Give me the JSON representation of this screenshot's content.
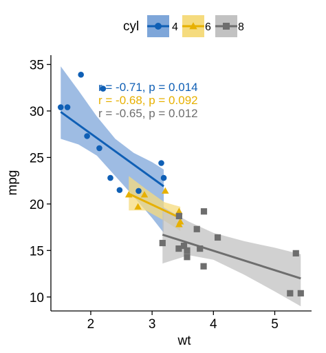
{
  "chart_data": {
    "type": "scatter",
    "xlabel": "wt",
    "ylabel": "mpg",
    "xlim": [
      1.35,
      5.6
    ],
    "ylim": [
      8.5,
      36
    ],
    "x_ticks": [
      2,
      3,
      4,
      5
    ],
    "y_ticks": [
      10,
      15,
      20,
      25,
      30,
      35
    ],
    "grid": false,
    "legend": {
      "position": "top",
      "title": "cyl",
      "entries": [
        "4",
        "6",
        "8"
      ]
    },
    "series": [
      {
        "name": "4",
        "color": "#0f5fb5",
        "fill": "#7ea6d9",
        "marker": "circle",
        "points": [
          [
            1.51,
            30.4
          ],
          [
            1.62,
            30.4
          ],
          [
            1.84,
            33.9
          ],
          [
            1.94,
            27.3
          ],
          [
            2.14,
            26.0
          ],
          [
            2.2,
            32.4
          ],
          [
            2.32,
            22.8
          ],
          [
            2.47,
            21.5
          ],
          [
            2.78,
            21.4
          ],
          [
            3.15,
            24.4
          ],
          [
            3.19,
            22.8
          ]
        ],
        "fit": {
          "x": [
            1.51,
            3.19
          ],
          "y": [
            29.9,
            21.9
          ]
        },
        "band": {
          "x": [
            1.51,
            1.8,
            2.1,
            2.4,
            2.7,
            3.0,
            3.19
          ],
          "upper": [
            34.8,
            32.2,
            29.4,
            27.0,
            25.5,
            24.5,
            23.7
          ],
          "lower": [
            27.0,
            26.4,
            25.2,
            23.0,
            20.8,
            18.5,
            16.9
          ]
        },
        "annotation": "r = -0.71, p = 0.014"
      },
      {
        "name": "6",
        "color": "#e7b000",
        "fill": "#f5db7e",
        "marker": "triangle",
        "points": [
          [
            2.62,
            21.0
          ],
          [
            2.77,
            19.7
          ],
          [
            2.875,
            21.0
          ],
          [
            3.215,
            21.4
          ],
          [
            3.44,
            19.2
          ],
          [
            3.44,
            17.8
          ],
          [
            3.46,
            18.1
          ]
        ],
        "fit": {
          "x": [
            2.62,
            3.46
          ],
          "y": [
            21.1,
            18.5
          ]
        },
        "band": {
          "x": [
            2.62,
            2.9,
            3.2,
            3.46
          ],
          "upper": [
            23.0,
            21.6,
            20.2,
            19.7
          ],
          "lower": [
            19.3,
            19.3,
            18.2,
            17.1
          ]
        },
        "annotation": "r = -0.68, p = 0.092"
      },
      {
        "name": "8",
        "color": "#6e6e6e",
        "fill": "#c2c2c2",
        "marker": "square",
        "points": [
          [
            3.17,
            15.8
          ],
          [
            3.44,
            18.7
          ],
          [
            3.52,
            15.5
          ],
          [
            3.435,
            15.2
          ],
          [
            3.57,
            14.3
          ],
          [
            3.57,
            15.0
          ],
          [
            3.73,
            17.3
          ],
          [
            3.78,
            15.2
          ],
          [
            3.84,
            13.3
          ],
          [
            3.845,
            19.2
          ],
          [
            4.07,
            16.4
          ],
          [
            5.25,
            10.4
          ],
          [
            5.345,
            14.7
          ],
          [
            5.424,
            10.4
          ]
        ],
        "fit": {
          "x": [
            3.17,
            5.424
          ],
          "y": [
            16.7,
            12.0
          ]
        },
        "band": {
          "x": [
            3.17,
            3.6,
            4.0,
            4.5,
            5.0,
            5.424
          ],
          "upper": [
            19.7,
            18.1,
            16.9,
            16.0,
            15.3,
            14.6
          ],
          "lower": [
            13.6,
            14.5,
            14.0,
            12.4,
            10.6,
            9.0
          ]
        },
        "annotation": "r = -0.65, p = 0.012"
      }
    ]
  }
}
